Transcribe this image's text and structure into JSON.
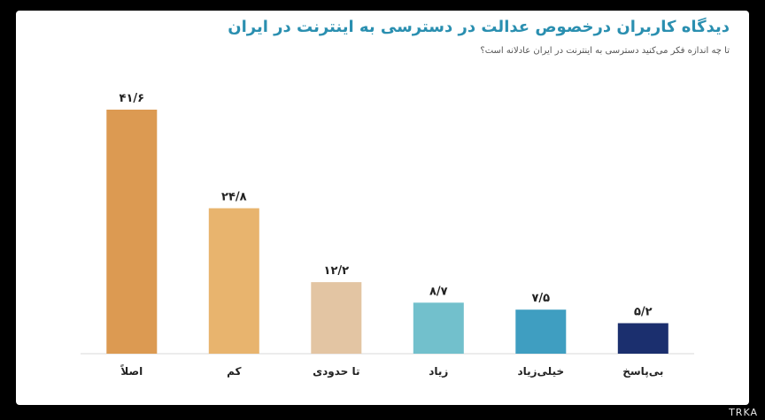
{
  "header": {
    "title": "دیدگاه کاربران درخصوص عدالت در دسترسی به اینترنت در ایران",
    "subtitle": "تا چه اندازه فکر می‌کنید دسترسی به اینترنت در ایران عادلانه است؟"
  },
  "watermark": "TRKA",
  "chart_data": {
    "type": "bar",
    "title": "دیدگاه کاربران درخصوص عدالت در دسترسی به اینترنت در ایران",
    "subtitle": "تا چه اندازه فکر می‌کنید دسترسی به اینترنت در ایران عادلانه است؟",
    "categories": [
      "اصلاً",
      "کم",
      "تا حدودی",
      "زیاد",
      "خیلی‌زیاد",
      "بی‌پاسخ"
    ],
    "values": [
      41.6,
      24.8,
      12.2,
      8.7,
      7.5,
      5.2
    ],
    "value_labels": [
      "۴۱/۶",
      "۲۴/۸",
      "۱۲/۲",
      "۸/۷",
      "۷/۵",
      "۵/۲"
    ],
    "colors": [
      "#dc9a52",
      "#e8b46e",
      "#e3c5a3",
      "#72c0cc",
      "#3f9ec1",
      "#1b2f6e"
    ],
    "ylim": [
      0,
      41.6
    ],
    "grid": false,
    "legend": "none"
  }
}
